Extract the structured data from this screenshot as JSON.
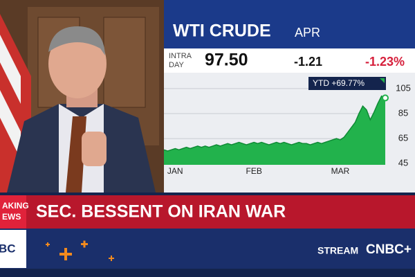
{
  "chart_data": {
    "type": "area",
    "title": "WTI CRUDE",
    "subtitle": "APR",
    "quote": {
      "label_lines": [
        "INTRA",
        "DAY"
      ],
      "price": "97.50",
      "change": "-1.21",
      "change_pct": "-1.23%"
    },
    "annotation": "YTD +69.77%",
    "categories": [
      null,
      null,
      null,
      "JAN",
      null,
      null,
      null,
      null,
      null,
      null,
      null,
      null,
      null,
      null,
      null,
      null,
      null,
      null,
      null,
      null,
      null,
      null,
      null,
      null,
      "FEB",
      null,
      null,
      null,
      null,
      null,
      null,
      null,
      null,
      null,
      null,
      null,
      null,
      null,
      null,
      null,
      null,
      null,
      null,
      null,
      null,
      null,
      null,
      "MAR",
      null,
      null,
      null,
      null,
      null,
      null,
      null,
      null,
      null,
      null,
      null,
      null
    ],
    "values": [
      56,
      55,
      56,
      57,
      56,
      57,
      58,
      57,
      58,
      59,
      58,
      59,
      58,
      59,
      60,
      59,
      60,
      61,
      60,
      61,
      62,
      61,
      60,
      61,
      62,
      61,
      62,
      61,
      60,
      61,
      62,
      61,
      62,
      61,
      60,
      61,
      62,
      61,
      61,
      60,
      61,
      62,
      61,
      62,
      63,
      64,
      65,
      64,
      66,
      70,
      74,
      78,
      85,
      91,
      88,
      80,
      86,
      93,
      99,
      97.5
    ],
    "color": "#22b24c",
    "ylim": [
      44,
      116
    ],
    "yticks": [
      45,
      65,
      85,
      105
    ],
    "grid": true
  },
  "banner": {
    "tag_lines": [
      "AKING",
      "EWS"
    ],
    "headline": "SEC. BESSENT ON IRAN WAR",
    "logo": "BC",
    "stream": "STREAM",
    "brand": "CNBC+"
  }
}
